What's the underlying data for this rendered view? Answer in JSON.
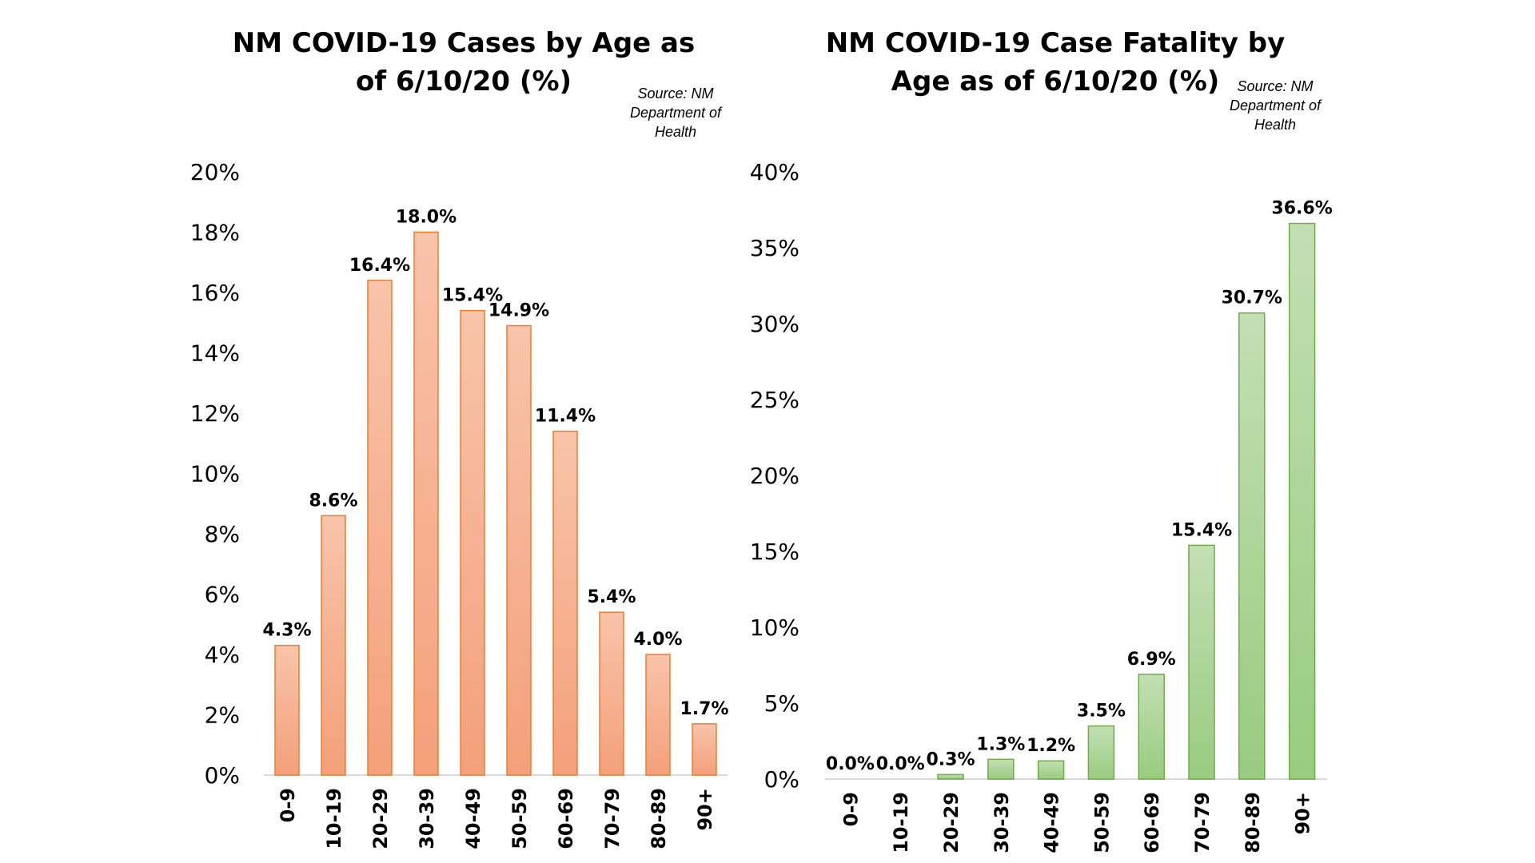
{
  "chart_data": [
    {
      "type": "bar",
      "title": "NM COVID-19 Cases by Age as of 6/10/20 (%)",
      "source": "Source: NM\nDepartment of\nHealth",
      "categories": [
        "0-9",
        "10-19",
        "20-29",
        "30-39",
        "40-49",
        "50-59",
        "60-69",
        "70-79",
        "80-89",
        "90+"
      ],
      "values": [
        4.3,
        8.6,
        16.4,
        18.0,
        15.4,
        14.9,
        11.4,
        5.4,
        4.0,
        1.7
      ],
      "data_labels": [
        "4.3%",
        "8.6%",
        "16.4%",
        "18.0%",
        "15.4%",
        "14.9%",
        "11.4%",
        "5.4%",
        "4.0%",
        "1.7%"
      ],
      "yticks": [
        0,
        2,
        4,
        6,
        8,
        10,
        12,
        14,
        16,
        18,
        20
      ],
      "ytick_labels": [
        "0%",
        "2%",
        "4%",
        "6%",
        "8%",
        "10%",
        "12%",
        "14%",
        "16%",
        "18%",
        "20%"
      ],
      "ylim": [
        0,
        20
      ],
      "grid": false,
      "colors": {
        "bar_top": "#f8c4aa",
        "bar_bottom": "#f4a07a",
        "bar_border": "#ed7d31",
        "axis": "#d9d9d9"
      }
    },
    {
      "type": "bar",
      "title": "NM COVID-19 Case Fatality by Age as of 6/10/20 (%)",
      "source": "Source: NM\nDepartment of\nHealth",
      "categories": [
        "0-9",
        "10-19",
        "20-29",
        "30-39",
        "40-49",
        "50-59",
        "60-69",
        "70-79",
        "80-89",
        "90+"
      ],
      "values": [
        0.0,
        0.0,
        0.3,
        1.3,
        1.2,
        3.5,
        6.9,
        15.4,
        30.7,
        36.6
      ],
      "data_labels": [
        "0.0%",
        "0.0%",
        "0.3%",
        "1.3%",
        "1.2%",
        "3.5%",
        "6.9%",
        "15.4%",
        "30.7%",
        "36.6%"
      ],
      "yticks": [
        0,
        5,
        10,
        15,
        20,
        25,
        30,
        35,
        40
      ],
      "ytick_labels": [
        "0%",
        "5%",
        "10%",
        "15%",
        "20%",
        "25%",
        "30%",
        "35%",
        "40%"
      ],
      "ylim": [
        0,
        40
      ],
      "grid": false,
      "colors": {
        "bar_top": "#c3dfb4",
        "bar_bottom": "#98cc7f",
        "bar_border": "#70ad47",
        "axis": "#d9d9d9"
      }
    }
  ]
}
